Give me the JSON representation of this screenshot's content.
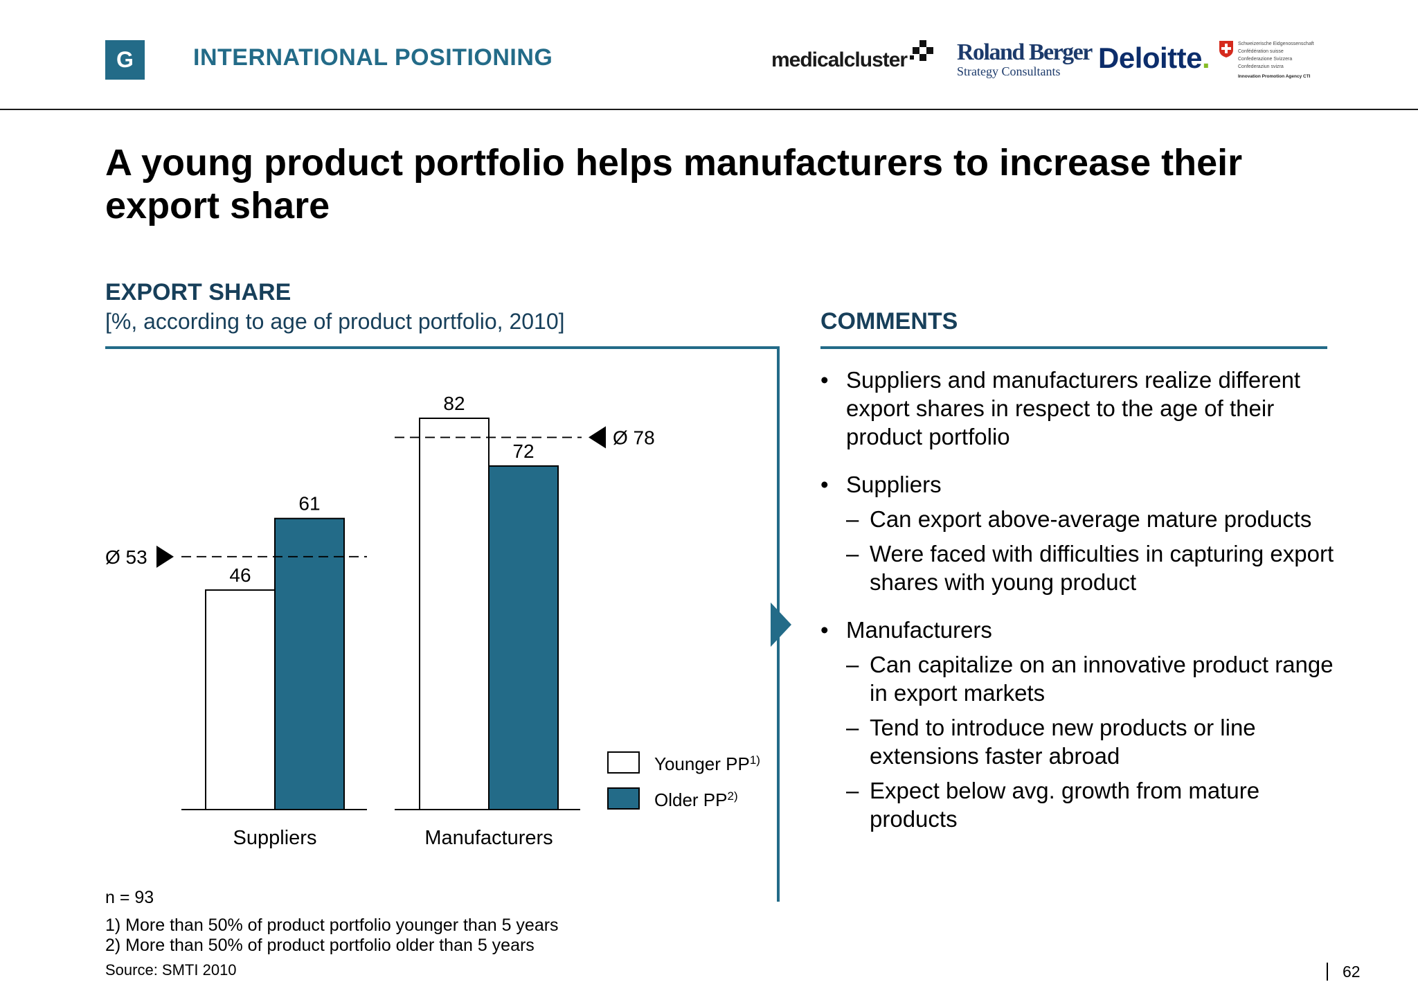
{
  "header": {
    "section_letter": "G",
    "section_title": "INTERNATIONAL POSITIONING",
    "logos": {
      "medical_cluster": "medicalcluster",
      "roland_berger_name": "Roland Berger",
      "roland_berger_sub": "Strategy Consultants",
      "deloitte": "Deloitte",
      "deloitte_dot": ".",
      "swiss_lines": [
        "Schweizerische Eidgenossenschaft",
        "Confédération suisse",
        "Confederazione Svizzera",
        "Confederaziun svizra"
      ],
      "swiss_agency": "Innovation Promotion Agency CTI"
    }
  },
  "title": "A young product portfolio helps manufacturers to increase their export share",
  "chart": {
    "title": "EXPORT SHARE",
    "subtitle": "[%, according to age of product portfolio, 2010]"
  },
  "chart_data": {
    "type": "bar",
    "categories": [
      "Suppliers",
      "Manufacturers"
    ],
    "series": [
      {
        "name": "Younger PP",
        "marker": "1)",
        "color": "#ffffff",
        "values": [
          46,
          82
        ]
      },
      {
        "name": "Older PP",
        "marker": "2)",
        "color": "#236b88",
        "values": [
          61,
          72
        ]
      }
    ],
    "averages": [
      {
        "category": "Suppliers",
        "label": "Ø 53",
        "value": 53,
        "side": "left"
      },
      {
        "category": "Manufacturers",
        "label": "Ø 78",
        "value": 78,
        "side": "right"
      }
    ],
    "ylim": [
      0,
      82
    ],
    "grid": false,
    "legend": "bottom-right",
    "sample": "n = 93"
  },
  "comments": {
    "title": "COMMENTS",
    "bullet_char": "•",
    "dash_char": "–",
    "items": [
      {
        "text": "Suppliers and manufacturers realize different export shares in respect to the age of their product portfolio",
        "subs": []
      },
      {
        "text": "Suppliers",
        "subs": [
          "Can export above-average mature products",
          "Were faced with difficulties in capturing export shares with young product"
        ]
      },
      {
        "text": "Manufacturers",
        "subs": [
          "Can capitalize on an innovative product range in export markets",
          "Tend to introduce new products or line extensions faster abroad",
          "Expect below avg. growth from mature products"
        ]
      }
    ]
  },
  "footnotes": [
    "1) More than 50% of product portfolio younger than 5 years",
    "2) More than 50% of product portfolio older than 5 years"
  ],
  "source": "Source:  SMTI 2010",
  "page_number": "62"
}
